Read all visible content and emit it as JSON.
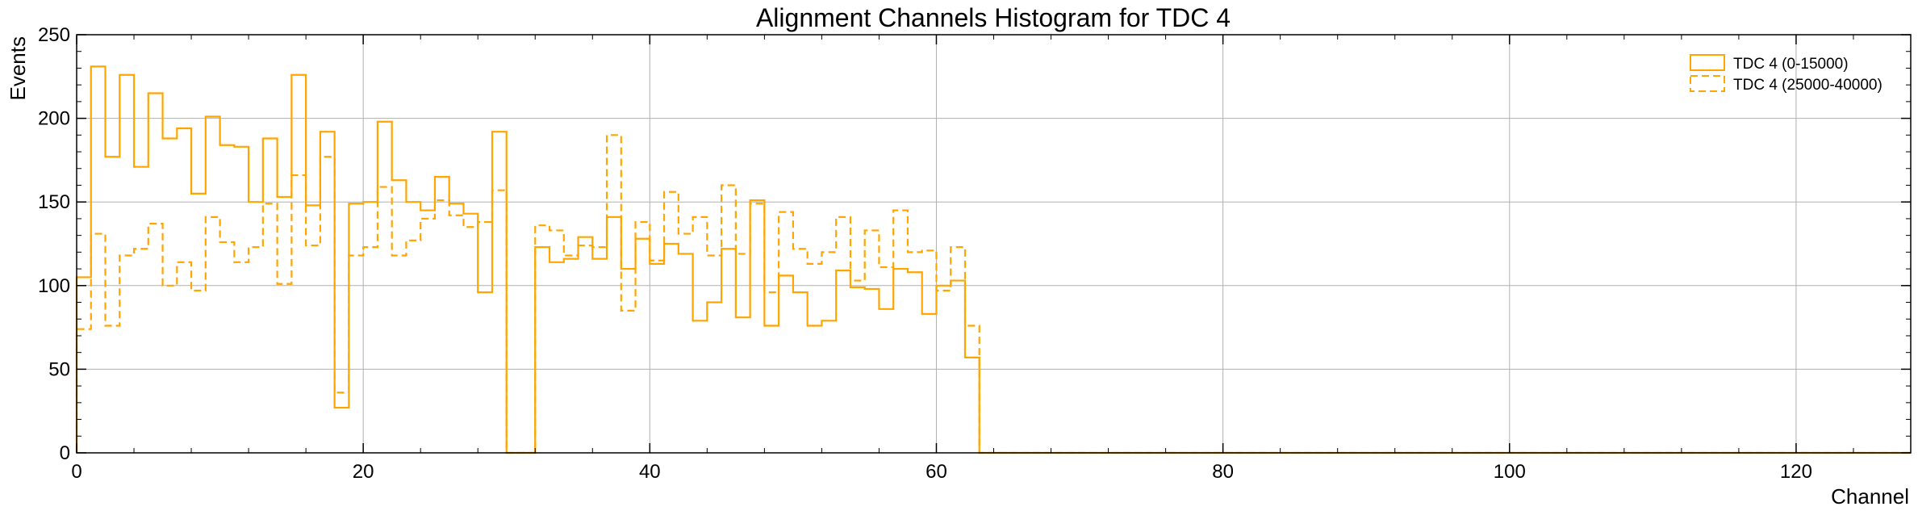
{
  "chart_data": {
    "type": "histogram",
    "title": "Alignment Channels Histogram for TDC 4",
    "xlabel": "Channel",
    "ylabel": "Events",
    "xlim": [
      0,
      128
    ],
    "ylim": [
      0,
      250
    ],
    "x_ticks": [
      "0",
      "20",
      "40",
      "60",
      "80",
      "100",
      "120"
    ],
    "y_ticks": [
      "0",
      "50",
      "100",
      "150",
      "200",
      "250"
    ],
    "grid": true,
    "legend_position": "top-right",
    "bin_edges_start": 0,
    "bin_width": 1,
    "series": [
      {
        "name": "TDC 4 (0-15000)",
        "style": "solid",
        "color": "#FFA500",
        "values": [
          105,
          231,
          177,
          226,
          171,
          215,
          188,
          194,
          155,
          201,
          184,
          183,
          150,
          188,
          153,
          226,
          148,
          192,
          27,
          149,
          150,
          198,
          163,
          150,
          145,
          165,
          149,
          143,
          96,
          192,
          0,
          0,
          123,
          114,
          116,
          129,
          116,
          141,
          110,
          128,
          113,
          125,
          119,
          79,
          90,
          122,
          81,
          151,
          76,
          106,
          96,
          76,
          79,
          109,
          99,
          98,
          86,
          110,
          108,
          83,
          100,
          103,
          57,
          0,
          0,
          0,
          0,
          0,
          0,
          0,
          0,
          0,
          0,
          0,
          0,
          0,
          0,
          0,
          0,
          0,
          0,
          0,
          0,
          0,
          0,
          0,
          0,
          0,
          0,
          0,
          0,
          0,
          0,
          0,
          0,
          0,
          0,
          0,
          0,
          0,
          0,
          0,
          0,
          0,
          0,
          0,
          0,
          0,
          0,
          0,
          0,
          0,
          0,
          0,
          0,
          0,
          0,
          0,
          0,
          0,
          0,
          0,
          0,
          0,
          0,
          0,
          0,
          0
        ]
      },
      {
        "name": "TDC 4 (25000-40000)",
        "style": "dashed",
        "color": "#FFA500",
        "values": [
          74,
          131,
          76,
          118,
          122,
          137,
          100,
          114,
          97,
          141,
          126,
          114,
          123,
          149,
          101,
          166,
          124,
          177,
          36,
          118,
          123,
          159,
          118,
          127,
          140,
          151,
          142,
          135,
          138,
          157,
          0,
          0,
          136,
          133,
          118,
          124,
          123,
          190,
          85,
          138,
          115,
          156,
          131,
          141,
          118,
          160,
          119,
          149,
          96,
          144,
          122,
          113,
          120,
          141,
          103,
          133,
          111,
          145,
          120,
          121,
          97,
          123,
          76,
          0,
          0,
          0,
          0,
          0,
          0,
          0,
          0,
          0,
          0,
          0,
          0,
          0,
          0,
          0,
          0,
          0,
          0,
          0,
          0,
          0,
          0,
          0,
          0,
          0,
          0,
          0,
          0,
          0,
          0,
          0,
          0,
          0,
          0,
          0,
          0,
          0,
          0,
          0,
          0,
          0,
          0,
          0,
          0,
          0,
          0,
          0,
          0,
          0,
          0,
          0,
          0,
          0,
          0,
          0,
          0,
          0,
          0,
          0,
          0,
          0,
          0,
          0,
          0,
          0
        ]
      }
    ]
  }
}
